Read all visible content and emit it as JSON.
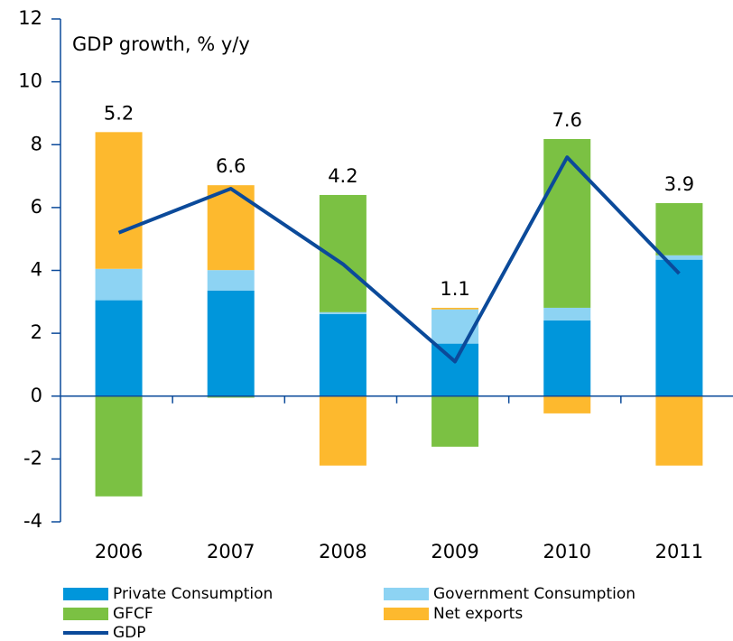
{
  "chart_data": {
    "type": "bar",
    "title": "GDP growth, % y/y",
    "categories": [
      "2006",
      "2007",
      "2008",
      "2009",
      "2010",
      "2011"
    ],
    "series": [
      {
        "name": "Private Consumption",
        "color": "#0096db",
        "values": [
          3.05,
          3.36,
          2.61,
          1.67,
          2.41,
          4.34
        ]
      },
      {
        "name": "Government Consumption",
        "color": "#8dd3f3",
        "values": [
          1.0,
          0.65,
          0.06,
          1.09,
          0.4,
          0.14
        ]
      },
      {
        "name": "GFCF",
        "color": "#7bc143",
        "values": [
          -3.19,
          -0.05,
          3.73,
          -1.61,
          5.37,
          1.66
        ]
      },
      {
        "name": "Net exports",
        "color": "#fdb92e",
        "values": [
          4.35,
          2.7,
          -2.21,
          0.05,
          -0.55,
          -2.21
        ]
      },
      {
        "name": "GDP",
        "type": "line",
        "color": "#0b4a9a",
        "values": [
          5.2,
          6.6,
          4.2,
          1.1,
          7.6,
          3.9
        ]
      }
    ],
    "ylim": [
      -4,
      12
    ],
    "yticks": [
      -4,
      -2,
      0,
      2,
      4,
      6,
      8,
      10,
      12
    ],
    "stacked": true
  }
}
